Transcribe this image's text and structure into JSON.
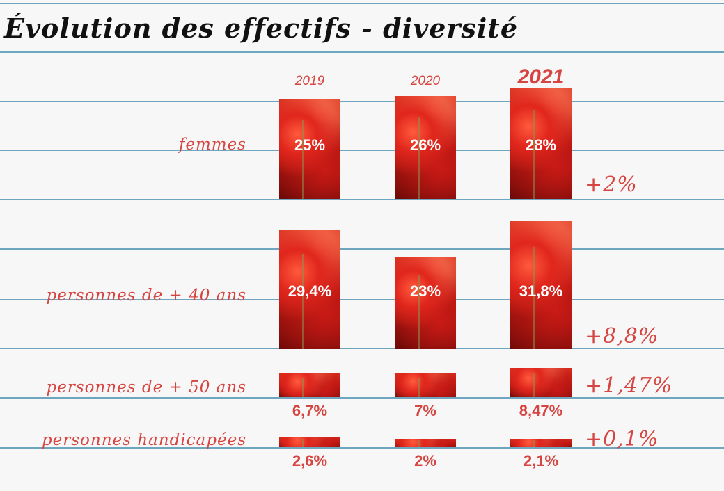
{
  "chart_data": {
    "type": "bar",
    "title": "Évolution des effectifs - diversité",
    "categories": [
      "2019",
      "2020",
      "2021"
    ],
    "groups": [
      {
        "label": "femmes",
        "values": [
          25,
          26,
          28
        ],
        "value_labels": [
          "25%",
          "26%",
          "28%"
        ],
        "delta": "+2%"
      },
      {
        "label": "personnes de + 40 ans",
        "values": [
          29.4,
          23,
          31.8
        ],
        "value_labels": [
          "29,4%",
          "23%",
          "31,8%"
        ],
        "delta": "+8,8%"
      },
      {
        "label": "personnes de + 50 ans",
        "values": [
          6.7,
          7,
          8.47
        ],
        "value_labels": [
          "6,7%",
          "7%",
          "8,47%"
        ],
        "delta": "+1,47%"
      },
      {
        "label": "personnes handicapées",
        "values": [
          2.6,
          2,
          2.1
        ],
        "value_labels": [
          "2,6%",
          "2%",
          "2,1%"
        ],
        "delta": "+0,1%"
      }
    ],
    "colors": {
      "accent": "#d64541",
      "rules": "#6ea6bf",
      "bar": "#c8231a"
    }
  }
}
